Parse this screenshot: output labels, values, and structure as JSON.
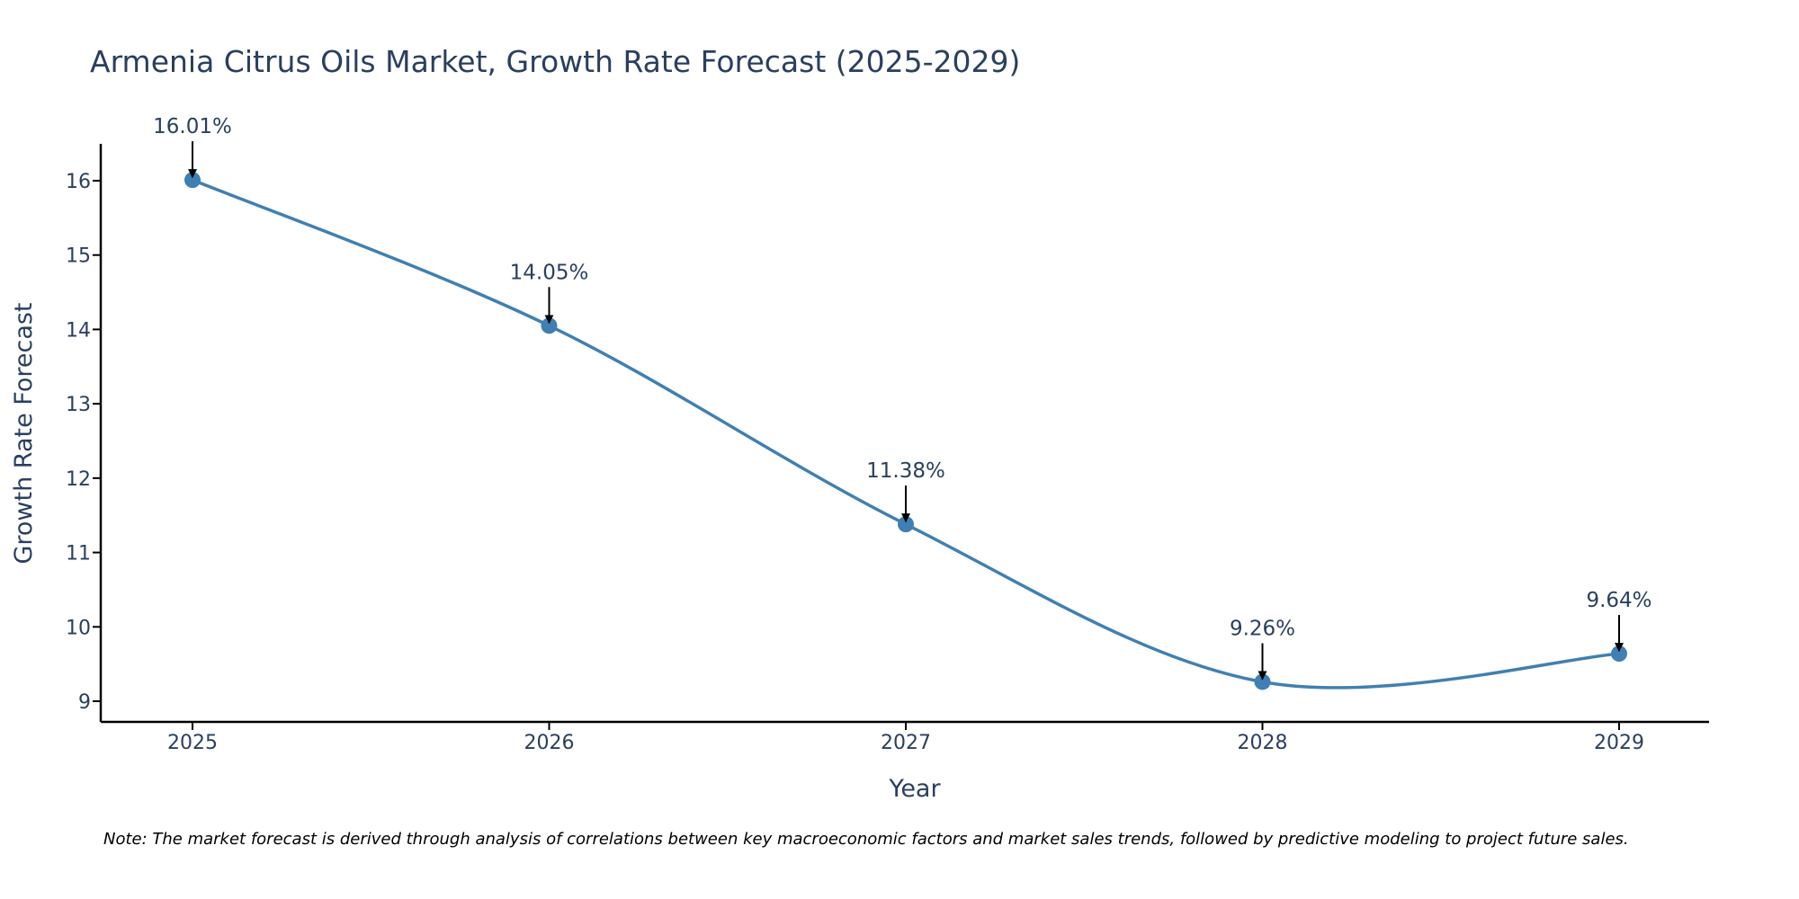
{
  "chart_data": {
    "type": "line",
    "title": "Armenia Citrus Oils Market, Growth Rate Forecast (2025-2029)",
    "xlabel": "Year",
    "ylabel": "Growth Rate Forecast",
    "categories": [
      "2025",
      "2026",
      "2027",
      "2028",
      "2029"
    ],
    "series": [
      {
        "name": "Growth Rate Forecast",
        "values": [
          16.01,
          14.05,
          11.38,
          9.26,
          9.64
        ],
        "labels": [
          "16.01%",
          "14.05%",
          "11.38%",
          "9.26%",
          "9.64%"
        ]
      }
    ],
    "yticks": [
      "9",
      "10",
      "11",
      "12",
      "13",
      "14",
      "15",
      "16"
    ],
    "ylim": [
      8.7,
      16.5
    ],
    "grid": false,
    "line_shape": "spline",
    "colors": {
      "line": "#4080b0",
      "marker": "#3f7fb3",
      "arrow": "#000000",
      "axis": "#000000"
    }
  },
  "note": "Note: The market forecast is derived through analysis of correlations between key macroeconomic factors and market sales trends, followed by predictive modeling to project future sales."
}
